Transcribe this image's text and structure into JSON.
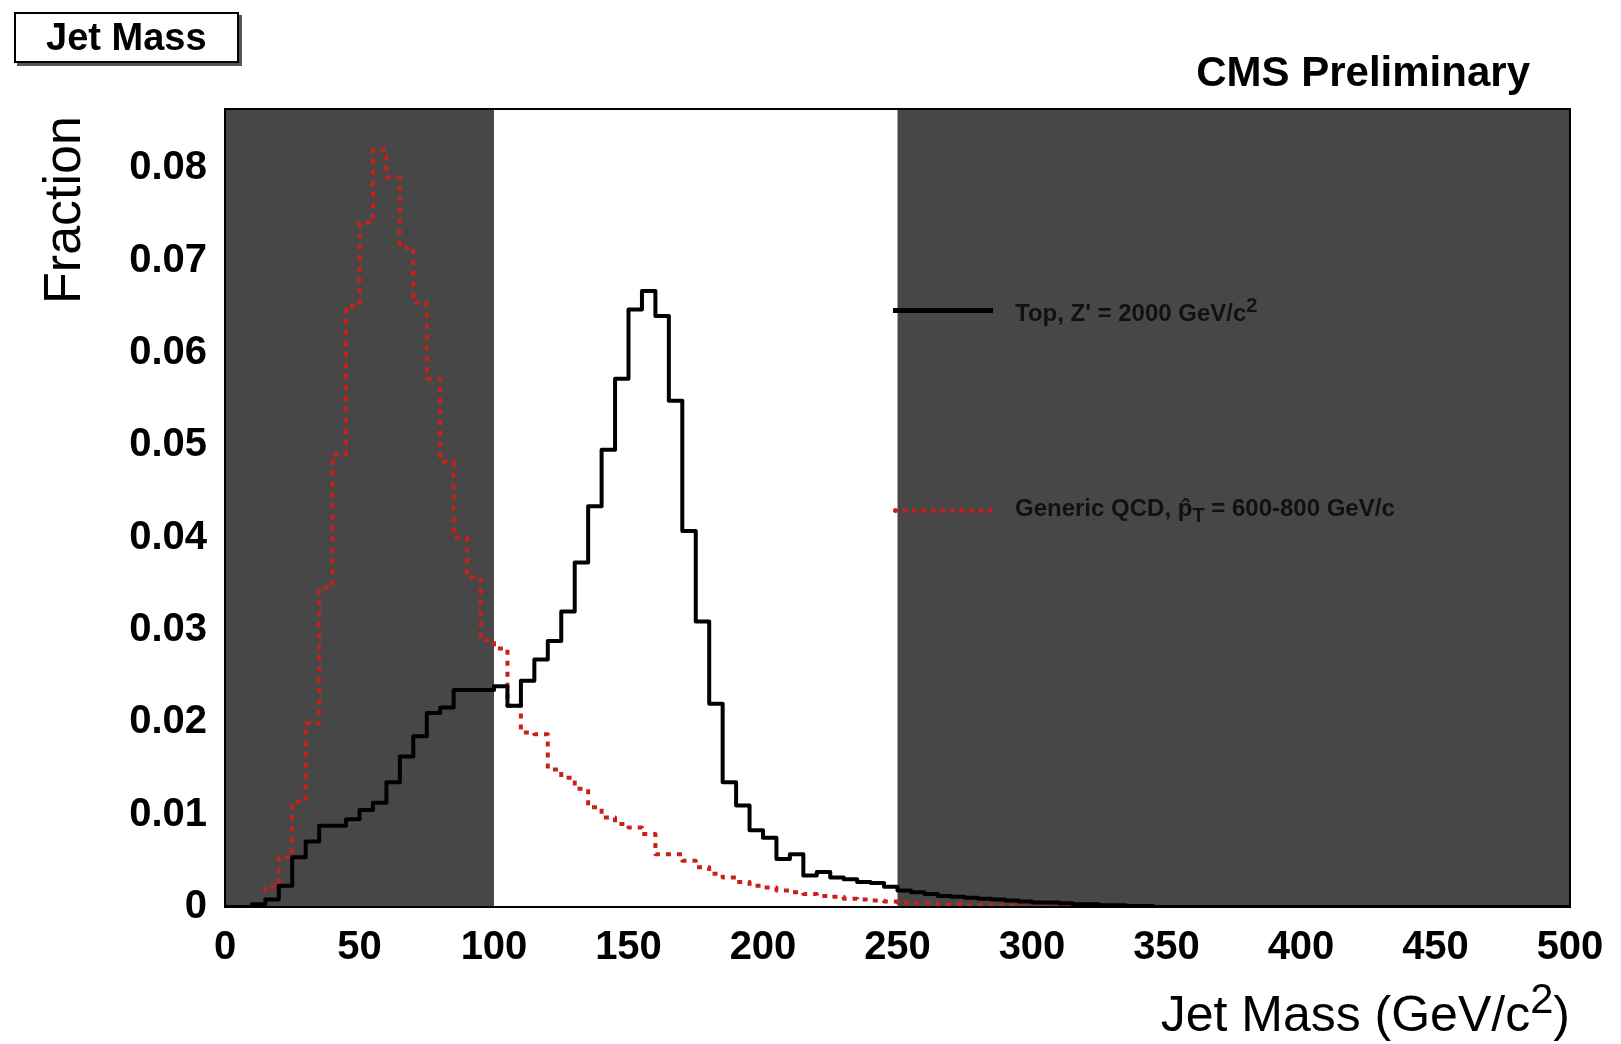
{
  "chart_data": {
    "type": "histogram",
    "title": "Jet Mass",
    "annotations": [
      "CMS Preliminary"
    ],
    "xlabel": "Jet Mass (GeV/c$^{2}$)",
    "ylabel": "Fraction",
    "bins": [
      0,
      5,
      10,
      15,
      20,
      25,
      30,
      35,
      40,
      45,
      50,
      55,
      60,
      65,
      70,
      75,
      80,
      85,
      90,
      95,
      100,
      105,
      110,
      115,
      120,
      125,
      130,
      135,
      140,
      145,
      150,
      155,
      160,
      165,
      170,
      175,
      180,
      185,
      190,
      195,
      200,
      205,
      210,
      215,
      220,
      225,
      230,
      235,
      240,
      245,
      250,
      255,
      260,
      265,
      270,
      275,
      280,
      285,
      290,
      295,
      300,
      305,
      310,
      315,
      320,
      325,
      330,
      335,
      340,
      345,
      350,
      355,
      360,
      365,
      370,
      375,
      380,
      385,
      390,
      395,
      400,
      405,
      410,
      415,
      420,
      425,
      430,
      435,
      440,
      445,
      450,
      455,
      460,
      465,
      470,
      475,
      480,
      485,
      490,
      495,
      500
    ],
    "series": [
      {
        "name": "Top, Z' = 2000 GeV/c$^{2}$",
        "color": "#000000",
        "line_style": "solid",
        "values": [
          0,
          0,
          0.0003,
          0.0008,
          0.0023,
          0.0054,
          0.0071,
          0.0088,
          0.0088,
          0.0095,
          0.0105,
          0.0113,
          0.0135,
          0.0163,
          0.0185,
          0.021,
          0.0216,
          0.0235,
          0.0235,
          0.0235,
          0.0239,
          0.0218,
          0.0245,
          0.0268,
          0.0288,
          0.032,
          0.0373,
          0.0434,
          0.0495,
          0.0572,
          0.0647,
          0.0667,
          0.064,
          0.0548,
          0.0407,
          0.0309,
          0.022,
          0.0135,
          0.011,
          0.0083,
          0.0075,
          0.0052,
          0.0057,
          0.0034,
          0.0038,
          0.0032,
          0.003,
          0.0027,
          0.0026,
          0.0022,
          0.0018,
          0.0016,
          0.0014,
          0.0012,
          0.0011,
          0.001,
          0.0009,
          0.0008,
          0.0007,
          0.0006,
          0.0005,
          0.0005,
          0.0004,
          0.0003,
          0.0003,
          0.0002,
          0.0002,
          0.0001,
          0.0001,
          0,
          0,
          0,
          0,
          0,
          0,
          0,
          0,
          0,
          0,
          0,
          0,
          0,
          0,
          0,
          0,
          0,
          0,
          0,
          0,
          0,
          0,
          0,
          0,
          0,
          0,
          0,
          0,
          0,
          0,
          0
        ]
      },
      {
        "name": "Generic QCD, p̂$_{T}$ = 600-800 GeV/c",
        "color": "#c8201a",
        "line_style": "dotted",
        "values": [
          0,
          0,
          0.0003,
          0.0022,
          0.0054,
          0.0114,
          0.0199,
          0.0346,
          0.049,
          0.0651,
          0.0741,
          0.082,
          0.079,
          0.0714,
          0.0654,
          0.0572,
          0.0482,
          0.04,
          0.0357,
          0.0289,
          0.028,
          0.0218,
          0.0189,
          0.0187,
          0.0149,
          0.014,
          0.0128,
          0.0108,
          0.0097,
          0.009,
          0.0086,
          0.0079,
          0.0057,
          0.0057,
          0.005,
          0.0043,
          0.0036,
          0.0032,
          0.0027,
          0.0023,
          0.0021,
          0.0018,
          0.0016,
          0.0014,
          0.0012,
          0.0011,
          0.0009,
          0.0008,
          0.0007,
          0.0006,
          0.0005,
          0.0004,
          0.0004,
          0.0003,
          0.0003,
          0.0002,
          0.0002,
          0.0001,
          0.0001,
          0,
          0,
          0,
          0,
          0,
          0,
          0,
          0,
          0,
          0,
          0,
          0,
          0,
          0,
          0,
          0,
          0,
          0,
          0,
          0,
          0,
          0,
          0,
          0,
          0,
          0,
          0,
          0,
          0,
          0,
          0,
          0,
          0,
          0,
          0,
          0,
          0,
          0,
          0,
          0,
          0
        ]
      }
    ],
    "bands": [
      {
        "axis": "x",
        "from": 0,
        "to": 100,
        "color": "#474747"
      },
      {
        "axis": "x",
        "from": 250,
        "to": 500,
        "color": "#474747"
      }
    ],
    "xlim": [
      0,
      500
    ],
    "xticks": [
      0,
      50,
      100,
      150,
      200,
      250,
      300,
      350,
      400,
      450,
      500
    ],
    "ylim": [
      0,
      0.0864
    ],
    "yticks": [
      0,
      0.01,
      0.02,
      0.03,
      0.04,
      0.05,
      0.06,
      0.07,
      0.08
    ],
    "grid": false,
    "legend": "right"
  }
}
